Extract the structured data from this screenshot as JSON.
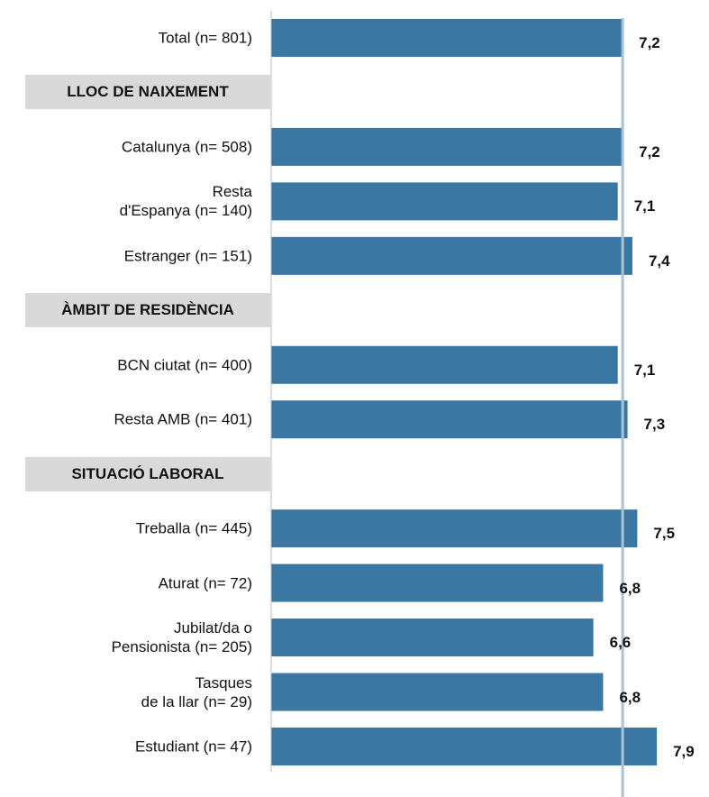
{
  "chart_data": {
    "type": "bar",
    "orientation": "horizontal",
    "color": "#3b77a3",
    "categories": [
      "Total (n= 801)",
      "LLOC DE NAIXEMENT",
      "Catalunya (n= 508)",
      "Resta\nd'Espanya (n= 140)",
      "Estranger (n= 151)",
      "ÀMBIT DE RESIDÈNCIA",
      "BCN ciutat (n= 400)",
      "Resta AMB (n= 401)",
      "SITUACIÓ LABORAL",
      "Treballa (n= 445)",
      "Aturat (n= 72)",
      "Jubilat/da o\nPensionista (n= 205)",
      "Tasques\nde la llar (n= 29)",
      "Estudiant (n= 47)"
    ],
    "values": [
      7.2,
      null,
      7.2,
      7.1,
      7.4,
      null,
      7.1,
      7.3,
      null,
      7.5,
      6.8,
      6.6,
      6.8,
      7.9
    ],
    "value_labels": [
      "7,2",
      null,
      "7,2",
      "7,1",
      "7,4",
      null,
      "7,1",
      "7,3",
      null,
      "7,5",
      "6,8",
      "6,6",
      "6,8",
      "7,9"
    ],
    "xlim": [
      0,
      8.6
    ]
  }
}
